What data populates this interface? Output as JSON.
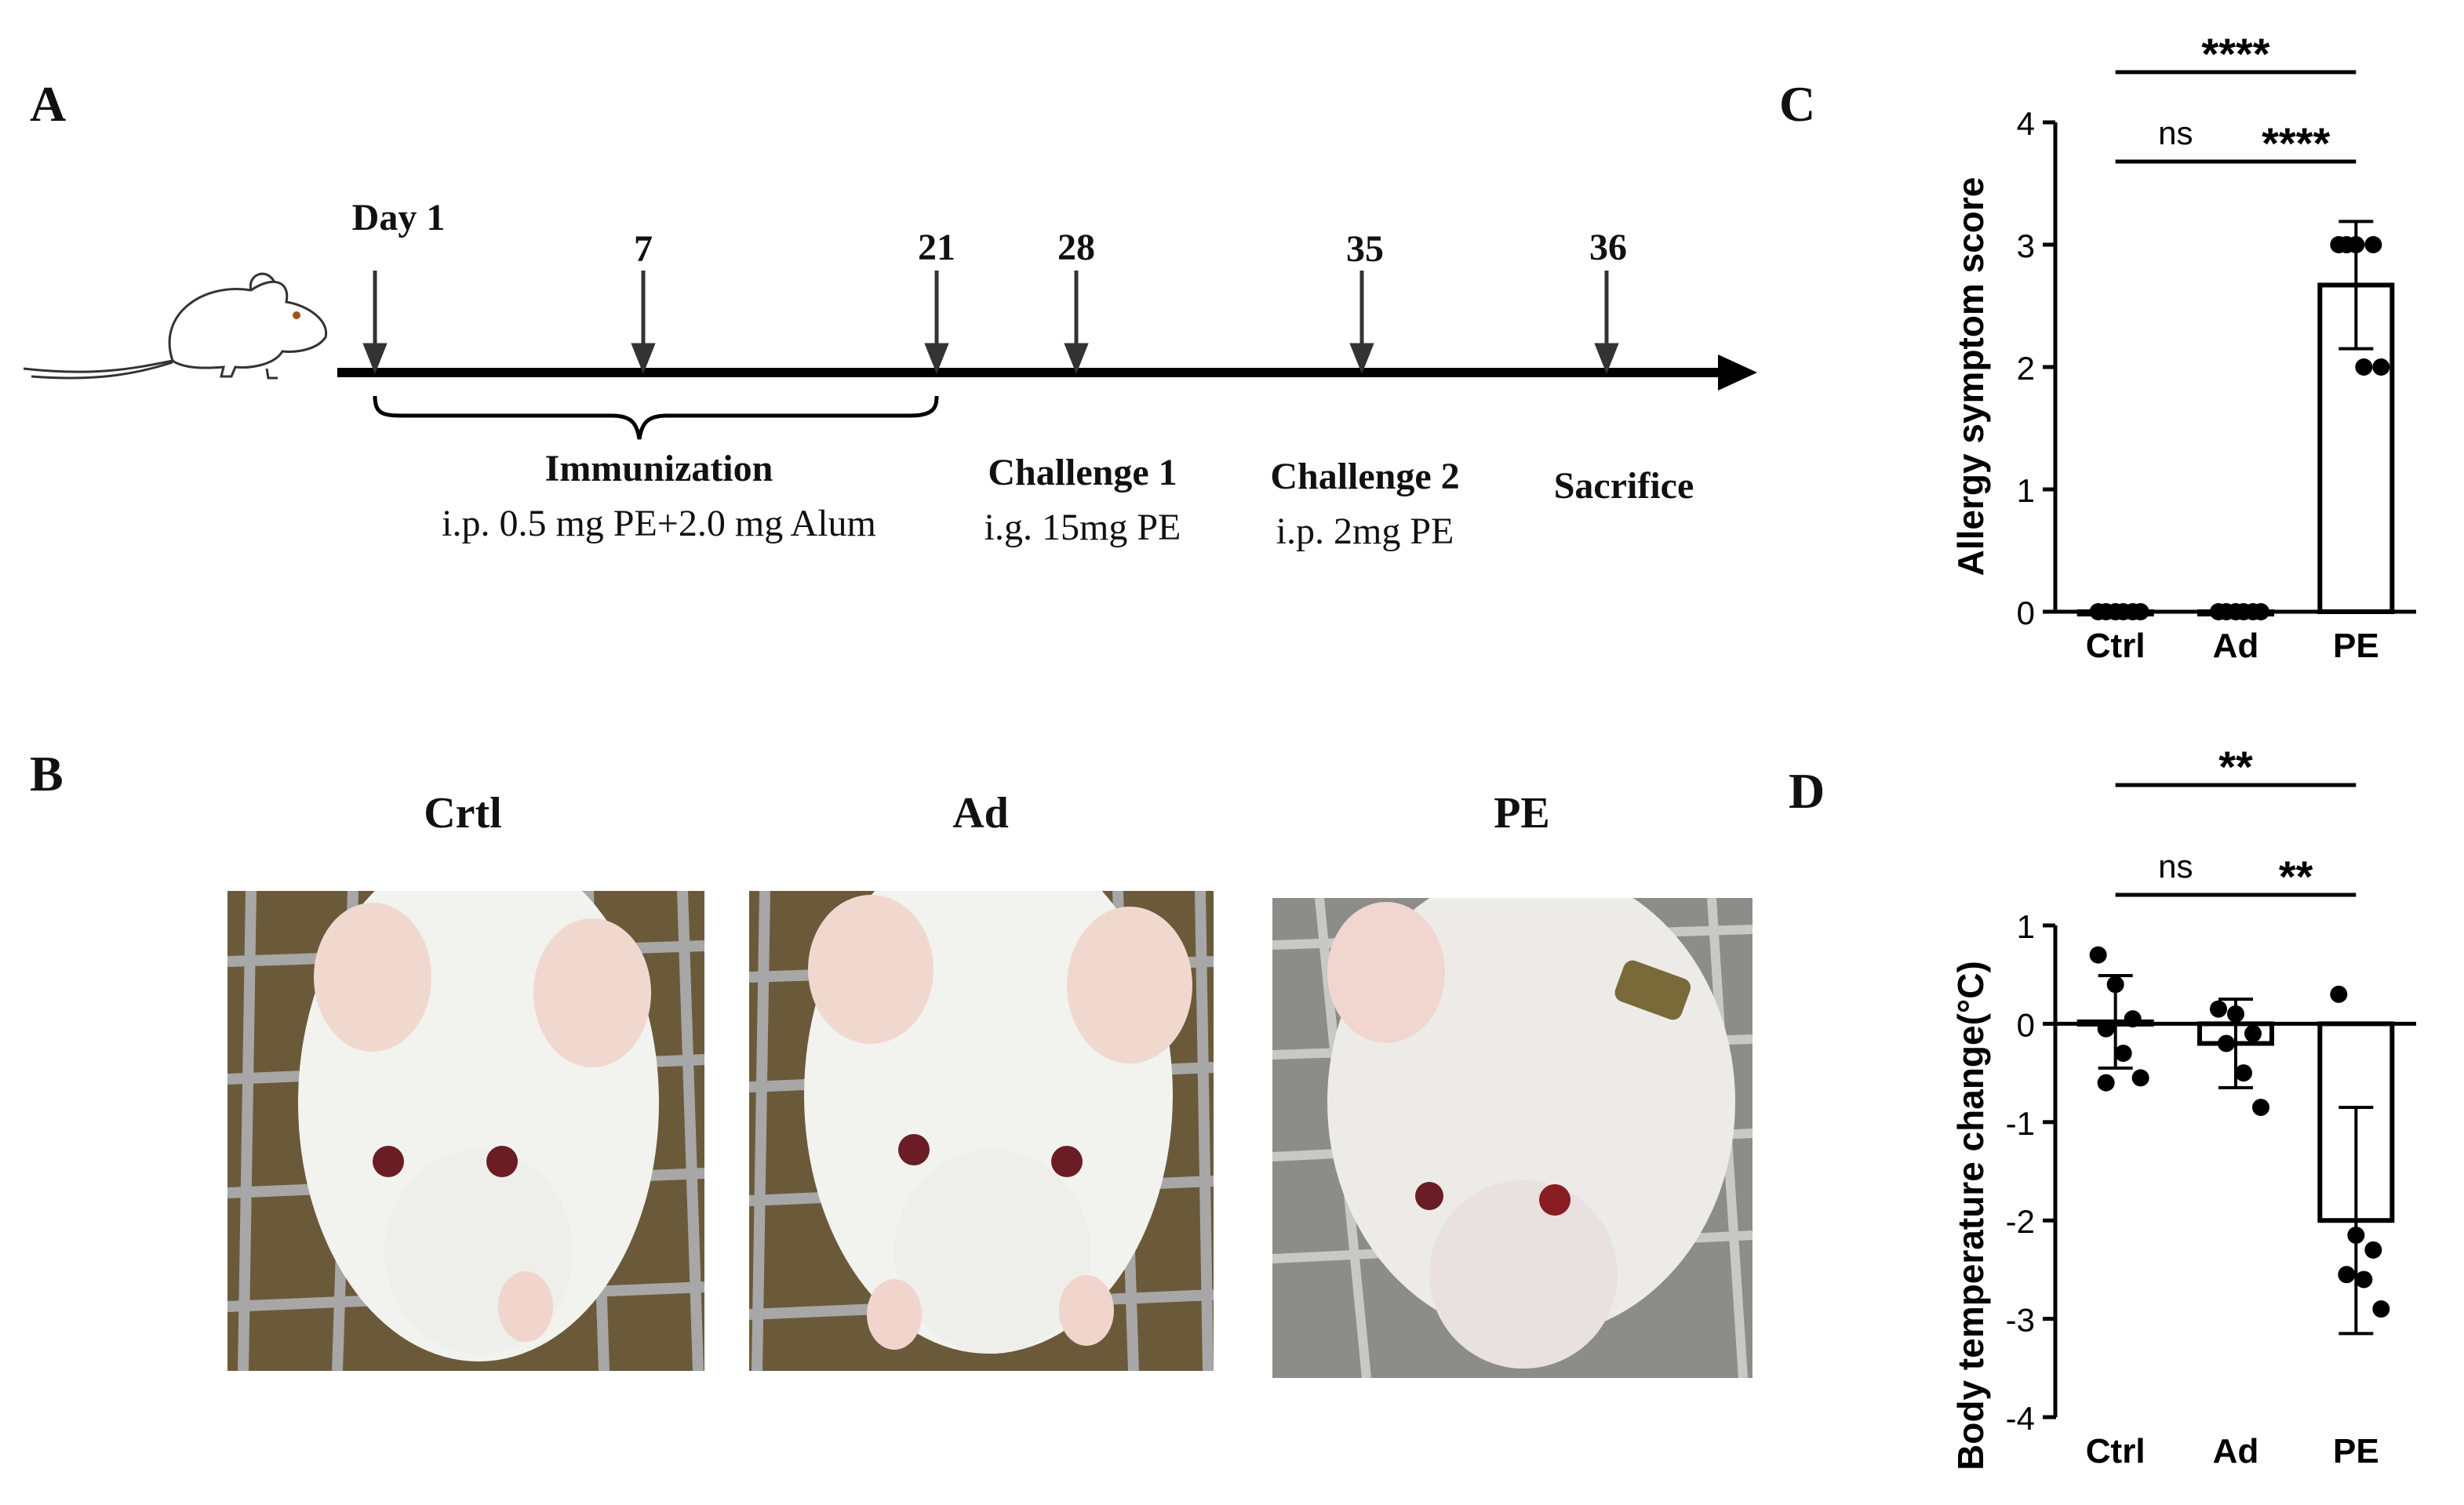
{
  "panel_labels": {
    "A": "A",
    "B": "B",
    "C": "C",
    "D": "D"
  },
  "timeline": {
    "days": [
      "Day 1",
      "7",
      "21",
      "28",
      "35",
      "36"
    ],
    "phases": [
      {
        "label": "Immunization",
        "detail": "i.p. 0.5 mg PE+2.0 mg Alum"
      },
      {
        "label": "Challenge 1",
        "detail": "i.g. 15mg PE"
      },
      {
        "label": "Challenge 2",
        "detail": "i.p. 2mg PE"
      },
      {
        "label": "Sacrifice",
        "detail": ""
      }
    ]
  },
  "photos": {
    "titles": [
      "Crtl",
      "Ad",
      "PE"
    ]
  },
  "chart_data": [
    {
      "panel": "C",
      "type": "bar",
      "categories": [
        "Ctrl",
        "Ad",
        "PE"
      ],
      "values": [
        0,
        0,
        2.67
      ],
      "error": [
        0,
        0,
        0.52
      ],
      "points": [
        [
          0,
          0,
          0,
          0,
          0,
          0
        ],
        [
          0,
          0,
          0,
          0,
          0,
          0
        ],
        [
          3,
          3,
          3,
          3,
          2,
          2
        ]
      ],
      "ylabel": "Allergy symptom score",
      "ylim": [
        0,
        4
      ],
      "yticks": [
        "0",
        "1",
        "2",
        "3",
        "4"
      ],
      "significance": [
        {
          "from": "Ctrl",
          "to": "Ad",
          "label": "ns"
        },
        {
          "from": "Ad",
          "to": "PE",
          "label": "****"
        },
        {
          "from": "Ctrl",
          "to": "PE",
          "label": "****"
        }
      ]
    },
    {
      "panel": "D",
      "type": "bar",
      "categories": [
        "Ctrl",
        "Ad",
        "PE"
      ],
      "values": [
        0.02,
        -0.2,
        -2.0
      ],
      "error": [
        0.47,
        0.45,
        1.15
      ],
      "points": [
        [
          0.7,
          0.4,
          0.05,
          -0.05,
          -0.3,
          -0.55,
          -0.6
        ],
        [
          0.15,
          0.1,
          -0.1,
          -0.2,
          -0.5,
          -0.85
        ],
        [
          0.3,
          -2.15,
          -2.3,
          -2.55,
          -2.6,
          -2.9
        ]
      ],
      "ylabel": "Body temperature change(°C)",
      "ylim": [
        -4,
        1
      ],
      "yticks": [
        "1",
        "0",
        "-1",
        "-2",
        "-3",
        "-4"
      ],
      "significance": [
        {
          "from": "Ctrl",
          "to": "Ad",
          "label": "ns"
        },
        {
          "from": "Ad",
          "to": "PE",
          "label": "**"
        },
        {
          "from": "Ctrl",
          "to": "PE",
          "label": "**"
        }
      ]
    }
  ]
}
